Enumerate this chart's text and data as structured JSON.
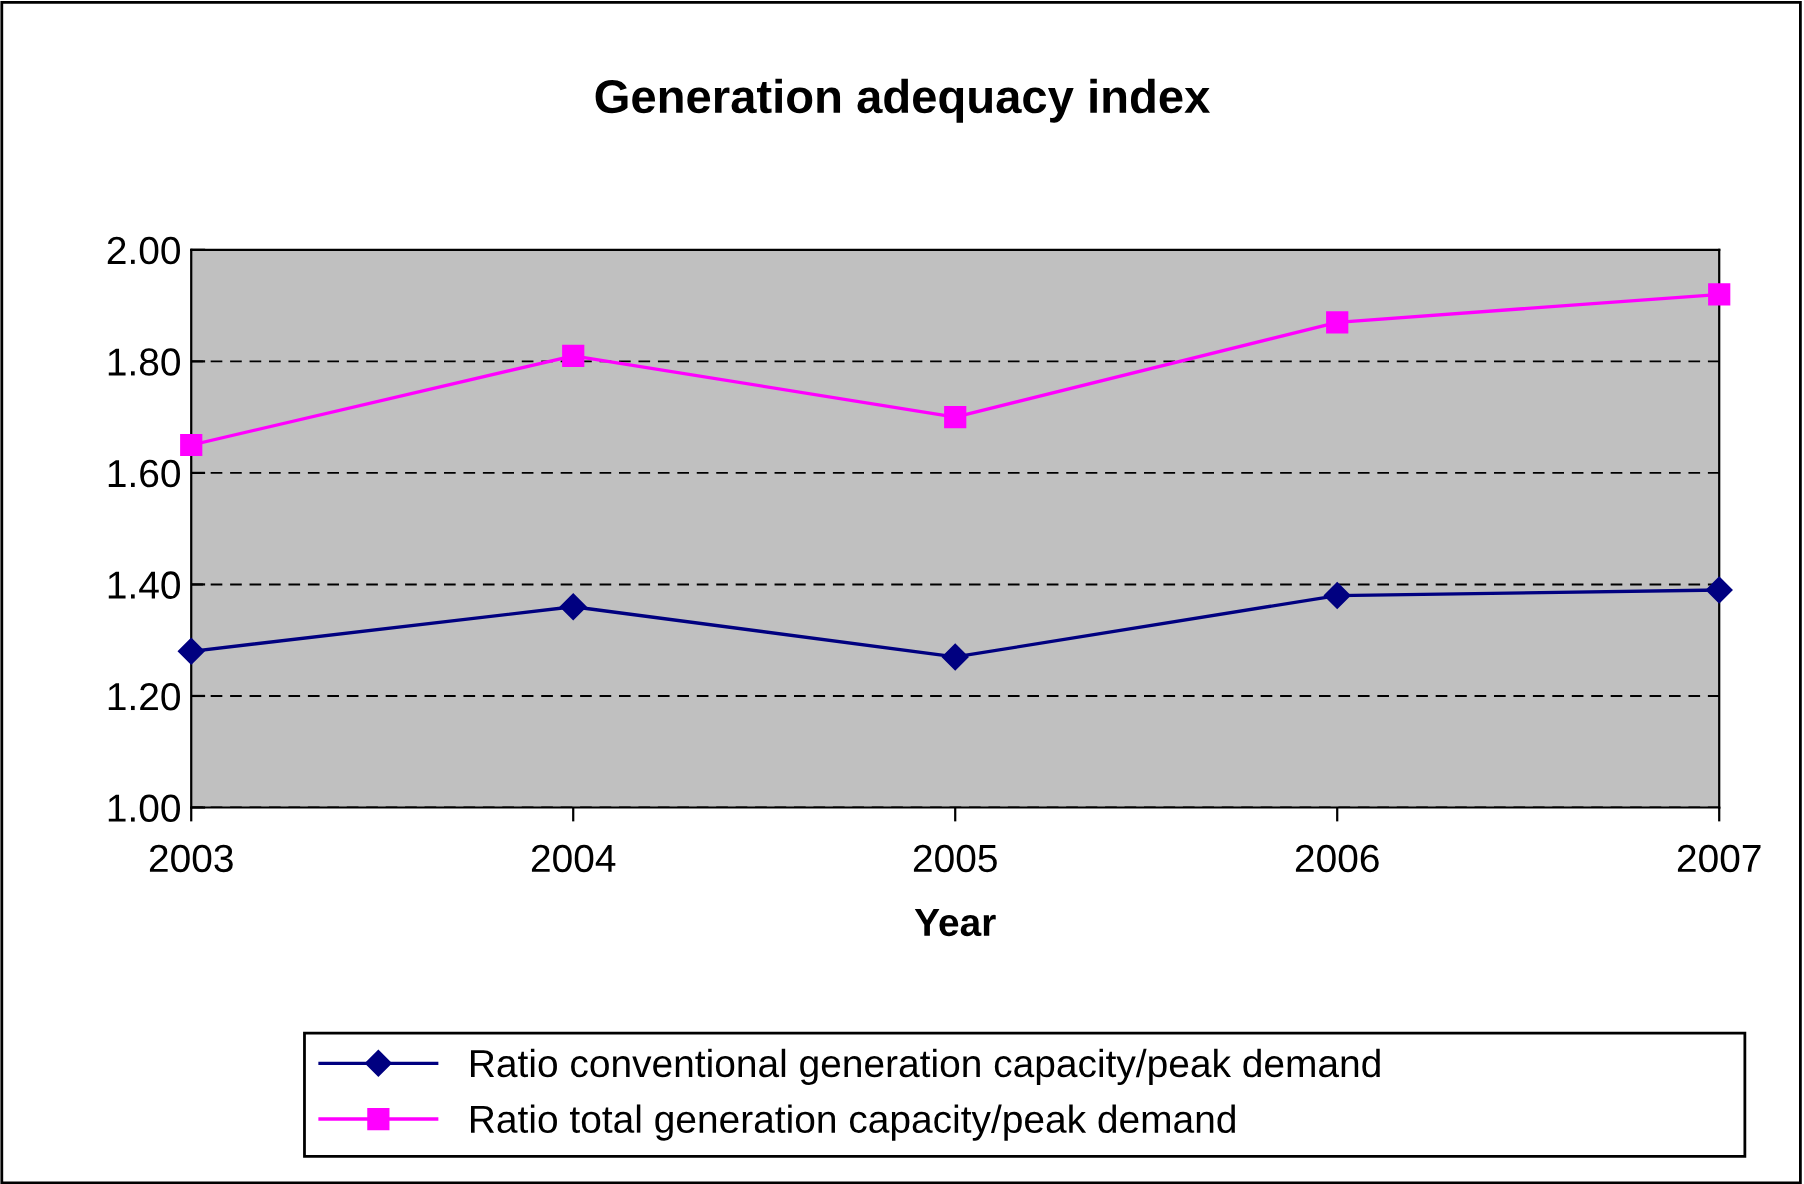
{
  "chart_data": {
    "type": "line",
    "title": "Generation adequacy index",
    "xlabel": "Year",
    "categories": [
      "2003",
      "2004",
      "2005",
      "2006",
      "2007"
    ],
    "series": [
      {
        "name": "Ratio conventional generation capacity/peak demand",
        "color": "#000080",
        "marker": "diamond",
        "values": [
          1.28,
          1.36,
          1.27,
          1.38,
          1.39
        ]
      },
      {
        "name": "Ratio total generation capacity/peak demand",
        "color": "#ff00ff",
        "marker": "square",
        "values": [
          1.65,
          1.81,
          1.7,
          1.87,
          1.92
        ]
      }
    ],
    "ylim": [
      1.0,
      2.0
    ],
    "yticks": [
      {
        "value": 1.0,
        "label": "1.00"
      },
      {
        "value": 1.2,
        "label": "1.20"
      },
      {
        "value": 1.4,
        "label": "1.40"
      },
      {
        "value": 1.6,
        "label": "1.60"
      },
      {
        "value": 1.8,
        "label": "1.80"
      },
      {
        "value": 2.0,
        "label": "2.00"
      }
    ],
    "grid": "y",
    "legend": "bottom",
    "line_style": "solid"
  }
}
